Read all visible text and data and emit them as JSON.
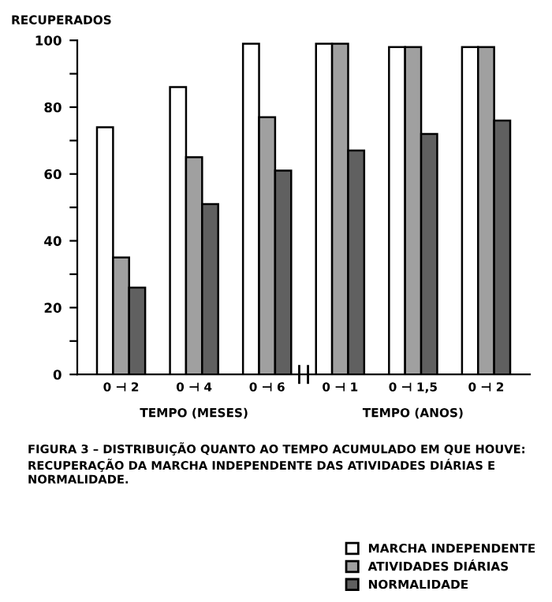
{
  "chart_data": {
    "type": "bar",
    "ylabel": "RECUPERADOS",
    "xlabel": "TEMPO (MESES)",
    "categories": [
      "0 ⊣ 2",
      "0 ⊣ 4",
      "0 ⊣ 6",
      "0 ⊣ 1",
      "0 ⊣ 1,5",
      "0 ⊣ 2"
    ],
    "series": [
      {
        "name": "MARCHA INDEPENDENTE",
        "color": "#ffffff",
        "values": [
          74,
          86,
          99,
          99,
          98,
          98
        ]
      },
      {
        "name": "ATIVIDADES DIÁRIAS",
        "color": "#a0a0a0",
        "values": [
          35,
          65,
          77,
          99,
          98,
          98
        ]
      },
      {
        "name": "NORMALIDADE",
        "color": "#606060",
        "values": [
          26,
          51,
          61,
          67,
          72,
          76
        ]
      }
    ],
    "ylim": [
      0,
      100
    ],
    "yticks": [
      0,
      {
        "value": 10,
        "label": null
      },
      20,
      {
        "value": 30,
        "label": null
      },
      40,
      {
        "value": 50,
        "label": null
      },
      60,
      {
        "value": 70,
        "label": null
      },
      80,
      {
        "value": 90,
        "label": null
      },
      100
    ],
    "annotations": [
      "TEMPO (ANOS)",
      "FIGURA 3 – DISTRIBUIÇÃO QUANTO AO TEMPO ACUMULADO EM QUE HOUVE: RECUPERAÇÃO DA MARCHA INDEPENDENTE DAS ATIVIDADES DIÁRIAS E NORMALIDADE."
    ],
    "legend": "bottom right",
    "grid": false
  }
}
